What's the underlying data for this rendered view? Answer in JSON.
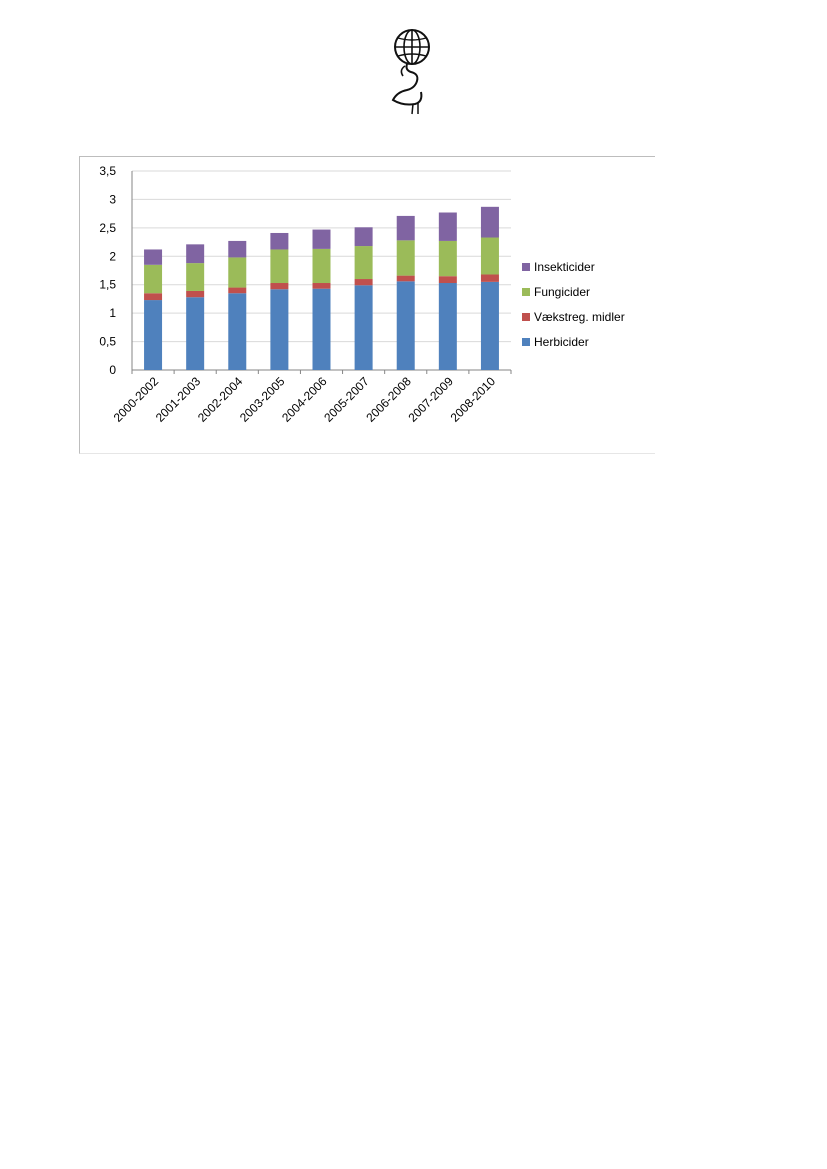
{
  "logo": {
    "icon": "globe-figure-logo-icon"
  },
  "chart_data": {
    "type": "bar",
    "stacked": true,
    "categories": [
      "2000-2002",
      "2001-2003",
      "2002-2004",
      "2003-2005",
      "2004-2006",
      "2005-2007",
      "2006-2008",
      "2007-2009",
      "2008-2010"
    ],
    "y_ticks": [
      "0",
      "0,5",
      "1",
      "1,5",
      "2",
      "2,5",
      "3",
      "3,5"
    ],
    "ylim": [
      0,
      3.5
    ],
    "grid": true,
    "legend_position": "right",
    "series": [
      {
        "name": "Herbicider",
        "color": "#4f81bd",
        "values": [
          1.23,
          1.28,
          1.35,
          1.42,
          1.43,
          1.49,
          1.56,
          1.53,
          1.55
        ]
      },
      {
        "name": "Vækstreg. midler",
        "color": "#c0504d",
        "values": [
          0.12,
          0.11,
          0.1,
          0.11,
          0.1,
          0.11,
          0.1,
          0.12,
          0.13
        ]
      },
      {
        "name": "Fungicider",
        "color": "#9bbb59",
        "values": [
          0.5,
          0.49,
          0.53,
          0.59,
          0.6,
          0.58,
          0.62,
          0.62,
          0.65
        ]
      },
      {
        "name": "Insekticider",
        "color": "#8064a2",
        "values": [
          0.27,
          0.33,
          0.29,
          0.29,
          0.34,
          0.33,
          0.43,
          0.5,
          0.54
        ]
      }
    ]
  }
}
